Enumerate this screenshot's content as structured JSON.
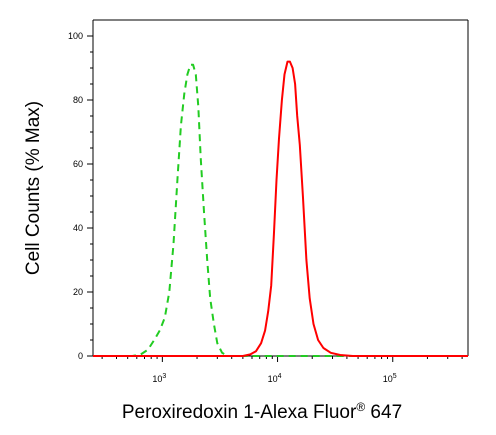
{
  "chart_data": {
    "type": "line",
    "title": "",
    "xlabel": {
      "main": "Peroxiredoxin 1-Alexa Fluor",
      "superscript": "®",
      "suffix": " 647"
    },
    "ylabel": "Cell Counts (% Max)",
    "x_scale": "log",
    "xlim": [
      250,
      450000
    ],
    "ylim": [
      0,
      100
    ],
    "y_ticks": [
      0,
      20,
      40,
      60,
      80,
      100
    ],
    "x_ticks": [
      {
        "value": 1000,
        "base": "10",
        "exp": "3"
      },
      {
        "value": 10000,
        "base": "10",
        "exp": "4"
      },
      {
        "value": 100000,
        "base": "10",
        "exp": "5"
      }
    ],
    "grid": false,
    "legend": "none",
    "series": [
      {
        "style": "dashed",
        "color": "#22cc22",
        "points": [
          [
            250,
            0
          ],
          [
            550,
            0
          ],
          [
            650,
            0.5
          ],
          [
            750,
            2
          ],
          [
            850,
            5
          ],
          [
            950,
            8
          ],
          [
            1050,
            12
          ],
          [
            1150,
            20
          ],
          [
            1250,
            35
          ],
          [
            1350,
            55
          ],
          [
            1450,
            72
          ],
          [
            1550,
            82
          ],
          [
            1650,
            88
          ],
          [
            1750,
            91
          ],
          [
            1850,
            91
          ],
          [
            1950,
            88
          ],
          [
            2050,
            78
          ],
          [
            2150,
            62
          ],
          [
            2300,
            45
          ],
          [
            2450,
            30
          ],
          [
            2600,
            18
          ],
          [
            2800,
            10
          ],
          [
            3000,
            4
          ],
          [
            3300,
            1
          ],
          [
            3700,
            0
          ],
          [
            6000,
            0
          ],
          [
            20000,
            0
          ],
          [
            450000,
            0
          ]
        ]
      },
      {
        "style": "solid",
        "color": "#ff0000",
        "points": [
          [
            250,
            0
          ],
          [
            3500,
            0
          ],
          [
            5000,
            0
          ],
          [
            5800,
            0.5
          ],
          [
            6500,
            1.5
          ],
          [
            7200,
            4
          ],
          [
            7800,
            8
          ],
          [
            8300,
            14
          ],
          [
            8800,
            22
          ],
          [
            9300,
            38
          ],
          [
            9800,
            55
          ],
          [
            10300,
            68
          ],
          [
            10900,
            80
          ],
          [
            11500,
            88
          ],
          [
            12200,
            92
          ],
          [
            12800,
            92
          ],
          [
            13500,
            90
          ],
          [
            14200,
            85
          ],
          [
            14800,
            75
          ],
          [
            15600,
            66
          ],
          [
            16600,
            50
          ],
          [
            17800,
            30
          ],
          [
            19000,
            18
          ],
          [
            20500,
            10
          ],
          [
            22500,
            5
          ],
          [
            25000,
            2.5
          ],
          [
            29000,
            1
          ],
          [
            35000,
            0.3
          ],
          [
            45000,
            0
          ],
          [
            450000,
            0
          ]
        ]
      }
    ]
  }
}
